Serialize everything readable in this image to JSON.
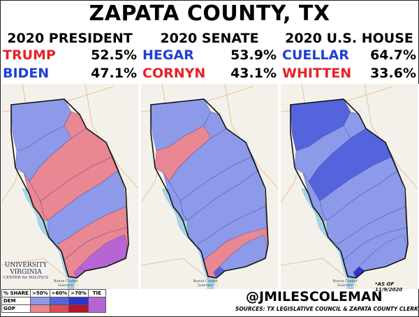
{
  "title": "ZAPATA COUNTY, TX",
  "races": [
    {
      "title": "2020 PRESIDENT",
      "candidates": [
        {
          "name": "TRUMP",
          "pct": "52.5%",
          "color": "#e8202a"
        },
        {
          "name": "BIDEN",
          "pct": "47.1%",
          "color": "#1f3fd6"
        }
      ]
    },
    {
      "title": "2020 SENATE",
      "candidates": [
        {
          "name": "HEGAR",
          "pct": "53.9%",
          "color": "#1f3fd6"
        },
        {
          "name": "CORNYN",
          "pct": "43.1%",
          "color": "#e8202a"
        }
      ]
    },
    {
      "title": "2020 U.S. HOUSE",
      "candidates": [
        {
          "name": "CUELLAR",
          "pct": "64.7%",
          "color": "#1f3fd6"
        },
        {
          "name": "WHITTEN",
          "pct": "33.6%",
          "color": "#e8202a"
        }
      ]
    }
  ],
  "map": {
    "places": [
      "Nueva Ciudad Guerrero"
    ],
    "precinct_results": [
      [
        "dem_lt60",
        "dem_lt60",
        "dem_60_70",
        "dem_60_70",
        "dem_60_70"
      ],
      [
        "dem_lt60",
        "gop_lt60",
        "dem_lt60",
        "dem_60_70",
        "dem_60_70"
      ],
      [
        "gop_lt60",
        "dem_lt60",
        "dem_60_70",
        "dem_60_70",
        "dem_60_70"
      ],
      [
        "gop_lt60",
        "dem_lt60",
        "dem_lt60",
        "dem_60_70",
        "dem_60_70"
      ],
      [
        "dem_lt60",
        "dem_lt60",
        "dem_lt60",
        "dem_60_70",
        "dem_lt60"
      ],
      [
        "gop_lt60",
        "dem_lt60",
        "dem_lt60",
        "dem_lt60",
        "dem_60_70"
      ],
      [
        "gop_lt60",
        "gop_lt60",
        "dem_lt60",
        "dem_60_70",
        "dem_60_70"
      ],
      [
        "gop_lt60",
        "dem_lt60",
        "dem_lt60",
        "dem_lt60",
        "dem_60_70"
      ],
      [
        "gop_lt60",
        "dem_lt60",
        "dem_lt60",
        "dem_lt60",
        "dem_lt60"
      ],
      [
        "tie",
        "dem_lt60",
        "dem_lt60",
        "dem_lt60",
        "dem_60_70"
      ],
      [
        "tie",
        "dem_60_70",
        "dem_gt70",
        "dem_lt60",
        "dem_60_70"
      ]
    ],
    "fill_colors": {
      "dem_lt60": "#8d9aea",
      "dem_60_70": "#5564dc",
      "dem_gt70": "#2b35c8",
      "gop_lt60": "#e98792",
      "tie": "#b865d4"
    }
  },
  "as_of": "*AS OF 11/9/2020",
  "logo": {
    "line1": "UNIVERSITY",
    "line2": "VIRGINIA",
    "line3": "CENTER for POLITICS"
  },
  "legend": {
    "header": [
      "% SHARE",
      ">50%",
      ">60%",
      ">70%",
      "TIE"
    ],
    "rows": [
      {
        "label": "DEM",
        "colors": [
          "#8d9aea",
          "#5564dc",
          "#2b35c8"
        ]
      },
      {
        "label": "GOP",
        "colors": [
          "#e98792",
          "#e04a55",
          "#b8142a"
        ]
      }
    ],
    "tie_color": "#b865d4"
  },
  "handle": "@JMILESCOLEMAN",
  "sources": "SOURCES: TX LEGISLATIVE COUNCIL & ZAPATA COUNTY CLERK"
}
